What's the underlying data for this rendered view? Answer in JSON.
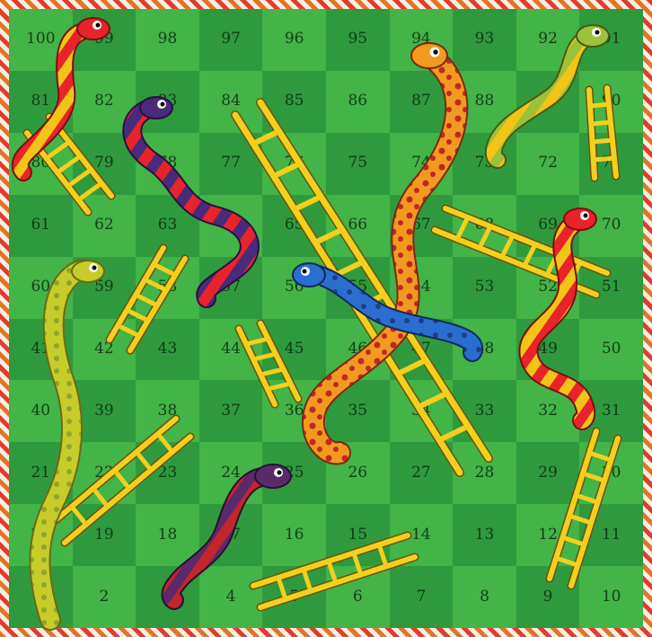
{
  "board": {
    "colors": {
      "light_square": "#43b447",
      "dark_square": "#2f9a3d",
      "ladder": "#f4cf1e",
      "border_orange": "#e2742a",
      "border_red": "#e23c2c"
    },
    "rows": [
      [
        100,
        99,
        98,
        97,
        96,
        95,
        94,
        93,
        92,
        91
      ],
      [
        81,
        82,
        83,
        84,
        85,
        86,
        87,
        88,
        89,
        90
      ],
      [
        80,
        79,
        78,
        77,
        76,
        75,
        74,
        73,
        72,
        71
      ],
      [
        61,
        62,
        63,
        64,
        65,
        66,
        67,
        68,
        69,
        70
      ],
      [
        60,
        59,
        58,
        57,
        56,
        55,
        54,
        53,
        52,
        51
      ],
      [
        41,
        42,
        43,
        44,
        45,
        46,
        47,
        48,
        49,
        50
      ],
      [
        40,
        39,
        38,
        37,
        36,
        35,
        34,
        33,
        32,
        31
      ],
      [
        21,
        22,
        23,
        24,
        25,
        26,
        27,
        28,
        29,
        30
      ],
      [
        20,
        19,
        18,
        17,
        16,
        15,
        14,
        13,
        12,
        11
      ],
      [
        1,
        2,
        3,
        4,
        5,
        6,
        7,
        8,
        9,
        10
      ]
    ],
    "snakes": [
      {
        "name": "red-yellow-snake",
        "head_square": 99,
        "tail_square": 80,
        "colors": [
          "#e8232a",
          "#f2c417"
        ]
      },
      {
        "name": "purple-red-snake",
        "head_square": 83,
        "tail_square": 57,
        "colors": [
          "#4a2a7a",
          "#e8232a"
        ]
      },
      {
        "name": "orange-snake",
        "head_square": 94,
        "tail_square": 35,
        "colors": [
          "#f29a1f",
          "#c2262a"
        ]
      },
      {
        "name": "green-yellow-snake",
        "head_square": 91,
        "tail_square": 73,
        "colors": [
          "#9bc23a",
          "#f2c417"
        ]
      },
      {
        "name": "red-yellow-right-snake",
        "head_square": 70,
        "tail_square": 49,
        "colors": [
          "#e8232a",
          "#f2c417"
        ]
      },
      {
        "name": "blue-snake",
        "head_square": 56,
        "tail_square": 48,
        "colors": [
          "#2a6fd0",
          "#1d3f8a"
        ]
      },
      {
        "name": "yellow-green-snake",
        "head_square": 59,
        "tail_square": 1,
        "colors": [
          "#c7cc2a",
          "#8ca82a"
        ]
      },
      {
        "name": "purple-red-bottom-snake",
        "head_square": 25,
        "tail_square": 3,
        "colors": [
          "#5a2a6a",
          "#c2262a"
        ]
      }
    ],
    "ladders": [
      {
        "name": "ladder-80-to-82",
        "bottom_square": 80,
        "top_square": 82
      },
      {
        "name": "ladder-89-to-71",
        "bottom_square": 71,
        "top_square": 89
      },
      {
        "name": "ladder-42-to-63",
        "bottom_square": 42,
        "top_square": 63
      },
      {
        "name": "ladder-36-to-44",
        "bottom_square": 36,
        "top_square": 44
      },
      {
        "name": "ladder-28-to-84",
        "bottom_square": 28,
        "top_square": 84
      },
      {
        "name": "ladder-51-to-66",
        "bottom_square": 51,
        "top_square": 66
      },
      {
        "name": "ladder-19-to-38",
        "bottom_square": 19,
        "top_square": 38
      },
      {
        "name": "ladder-5-to-14",
        "bottom_square": 5,
        "top_square": 14
      },
      {
        "name": "ladder-9-to-31",
        "bottom_square": 9,
        "top_square": 31
      }
    ]
  }
}
